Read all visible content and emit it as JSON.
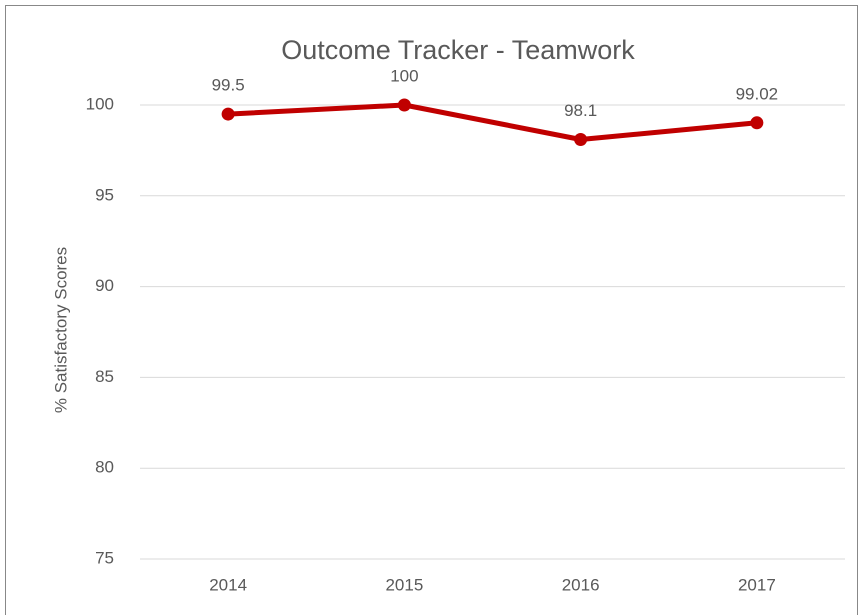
{
  "chart_data": {
    "type": "line",
    "title": "Outcome Tracker - Teamwork",
    "y_label": "% Satisfactory Scores",
    "categories": [
      "2014",
      "2015",
      "2016",
      "2017"
    ],
    "series": [
      {
        "name": "Teamwork",
        "color": "#c00000",
        "values": [
          99.5,
          100,
          98.1,
          99.02
        ]
      }
    ],
    "ylim": [
      75,
      100
    ],
    "yticks": [
      75,
      80,
      85,
      90,
      95,
      100
    ],
    "grid": true
  }
}
